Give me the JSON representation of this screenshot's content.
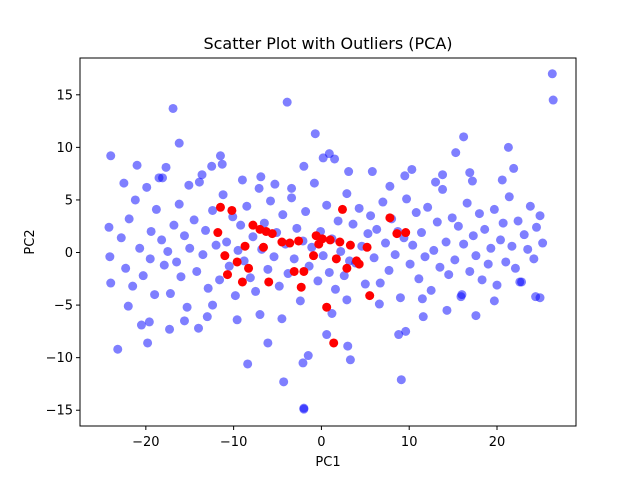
{
  "chart_data": {
    "type": "scatter",
    "title": "Scatter Plot with Outliers (PCA)",
    "xlabel": "PC1",
    "ylabel": "PC2",
    "xlim": [
      -27.5,
      29.0
    ],
    "ylim": [
      -16.5,
      18.5
    ],
    "xticks": [
      -20,
      -10,
      0,
      10,
      20
    ],
    "yticks": [
      -15,
      -10,
      -5,
      0,
      5,
      10,
      15
    ],
    "grid": false,
    "legend": "none",
    "series": [
      {
        "color": "#0000ff",
        "alpha": 0.5,
        "x": [
          -24.2,
          -24.1,
          -24.0,
          -22.8,
          -22.3,
          -21.9,
          -21.5,
          -21.2,
          -20.7,
          -20.3,
          -19.9,
          -19.5,
          -19.4,
          -19.0,
          -18.8,
          -18.2,
          -17.9,
          -17.5,
          -17.2,
          -16.8,
          -16.5,
          -16.2,
          -16.0,
          -15.6,
          -15.3,
          -15.0,
          -14.5,
          -14.2,
          -13.9,
          -13.5,
          -13.2,
          -12.9,
          -12.4,
          -12.0,
          -11.6,
          -11.2,
          -10.8,
          -10.5,
          -10.1,
          -9.8,
          -9.5,
          -9.2,
          -8.8,
          -8.5,
          -8.1,
          -7.8,
          -7.5,
          -7.1,
          -6.8,
          -6.5,
          -6.1,
          -5.8,
          -5.4,
          -5.1,
          -4.8,
          -4.4,
          -4.1,
          -3.8,
          -3.4,
          -3.1,
          -2.8,
          -2.4,
          -2.1,
          -1.8,
          -1.4,
          -1.1,
          -0.8,
          -0.4,
          -0.1,
          0.2,
          0.6,
          0.9,
          1.2,
          1.6,
          1.9,
          2.2,
          2.6,
          2.9,
          3.2,
          3.6,
          3.9,
          4.3,
          4.6,
          5.0,
          5.3,
          5.6,
          6.0,
          6.3,
          6.7,
          7.0,
          7.3,
          7.7,
          8.0,
          8.4,
          8.7,
          9.0,
          9.4,
          9.7,
          10.1,
          10.4,
          10.8,
          11.1,
          11.4,
          11.8,
          12.1,
          12.5,
          12.8,
          13.2,
          13.5,
          13.8,
          14.2,
          14.5,
          14.9,
          15.2,
          15.6,
          15.9,
          16.2,
          16.6,
          16.9,
          17.3,
          17.6,
          18.0,
          18.3,
          18.6,
          19.0,
          19.3,
          19.7,
          20.0,
          20.4,
          20.7,
          21.0,
          21.4,
          21.7,
          22.1,
          22.4,
          22.8,
          23.1,
          23.5,
          23.8,
          24.2,
          24.5,
          24.9,
          25.2,
          26.4,
          26.3,
          -16.9,
          -3.9,
          -0.7,
          0.9,
          21.3,
          -24.0,
          -12.5,
          -18.5,
          -16.2,
          -11.5,
          16.2,
          15.3,
          -2.0,
          9.1,
          -4.3,
          -2.0,
          0.6,
          8.8,
          -13.0,
          -19.8,
          -23.2,
          -20.5,
          -17.3,
          -14.0,
          -8.4,
          -6.1,
          -2.1,
          -1.5,
          3.0,
          3.3,
          9.6,
          11.6,
          14.3,
          17.6,
          22.6,
          24.9,
          -22.0,
          -19.6,
          -15.6,
          -12.4,
          -9.6,
          -7.0,
          -4.5,
          1.2,
          2.9,
          6.6,
          11.5,
          16.0,
          19.7,
          24.4,
          -21.0,
          -17.7,
          -13.6,
          -9.0,
          -5.3,
          -2.0,
          1.5,
          3.1,
          7.8,
          10.3,
          13.8,
          17.2,
          21.9,
          -22.5,
          -18.1,
          -15.1,
          -11.3,
          -6.9,
          -3.4,
          0.2,
          5.8,
          9.5,
          13.0,
          16.9,
          20.6
        ],
        "y": [
          2.4,
          -0.4,
          -2.9,
          1.4,
          -1.5,
          3.2,
          -3.2,
          5.0,
          0.4,
          -2.2,
          6.2,
          -0.6,
          2.0,
          -4.0,
          4.1,
          1.2,
          -1.2,
          0.1,
          -3.9,
          2.6,
          -0.9,
          4.6,
          -2.3,
          1.6,
          -5.2,
          0.4,
          3.1,
          -1.8,
          6.7,
          -0.2,
          2.1,
          -3.4,
          4.0,
          0.7,
          -2.6,
          5.5,
          1.0,
          -1.3,
          3.4,
          -4.1,
          0.2,
          2.6,
          -0.8,
          4.4,
          -2.4,
          1.5,
          -3.7,
          6.1,
          0.3,
          2.8,
          -1.6,
          4.9,
          -0.4,
          1.9,
          -3.2,
          3.6,
          0.8,
          -2.0,
          5.2,
          -0.6,
          2.3,
          -4.6,
          1.1,
          3.9,
          -1.3,
          0.5,
          6.6,
          -2.7,
          2.0,
          -0.3,
          4.5,
          -1.9,
          1.3,
          -3.5,
          3.0,
          0.1,
          -2.2,
          5.6,
          -0.8,
          2.7,
          -1.0,
          4.2,
          0.6,
          -3.0,
          1.8,
          3.5,
          -0.5,
          2.2,
          -2.9,
          4.8,
          0.9,
          -1.7,
          3.2,
          -0.2,
          2.0,
          -4.3,
          1.4,
          5.1,
          -1.1,
          0.7,
          3.8,
          -2.5,
          1.9,
          -0.4,
          4.3,
          -3.6,
          0.2,
          2.9,
          -1.4,
          6.0,
          1.0,
          -2.1,
          3.3,
          -0.7,
          2.5,
          -4.2,
          0.8,
          4.7,
          -1.8,
          1.6,
          -0.3,
          3.7,
          -2.6,
          2.2,
          -1.1,
          0.4,
          4.1,
          -3.1,
          1.2,
          2.8,
          -0.9,
          5.3,
          0.6,
          -1.5,
          3.0,
          -2.8,
          1.7,
          0.3,
          4.4,
          -0.6,
          2.4,
          3.5,
          0.9,
          14.5,
          17.0,
          13.7,
          14.3,
          11.3,
          9.4,
          10.0,
          9.2,
          8.2,
          7.1,
          10.4,
          9.2,
          11.0,
          9.5,
          -14.9,
          -12.1,
          -12.3,
          -14.8,
          -7.8,
          -7.8,
          -6.1,
          -8.6,
          -9.2,
          -6.9,
          -7.3,
          -7.2,
          -10.6,
          -8.6,
          -10.5,
          -9.8,
          -8.9,
          -10.2,
          -7.5,
          -6.1,
          -5.5,
          -6.0,
          -2.8,
          -4.3,
          -5.1,
          -6.6,
          -6.5,
          -5.0,
          -6.4,
          -5.9,
          -6.3,
          -5.8,
          -4.5,
          -4.9,
          -4.4,
          -4.0,
          -4.6,
          -4.2,
          8.3,
          8.1,
          7.4,
          6.9,
          6.5,
          8.2,
          8.9,
          7.7,
          6.3,
          7.9,
          7.4,
          6.8,
          8.0,
          6.6,
          7.1,
          6.4,
          8.4,
          7.2,
          6.1,
          9.0,
          7.7,
          7.3,
          6.7,
          7.6,
          6.9
        ]
      },
      {
        "color": "#ff0000",
        "alpha": 1.0,
        "x": [
          -11.8,
          -11.5,
          -11.0,
          -10.7,
          -10.2,
          -9.6,
          -9.0,
          -8.7,
          -8.3,
          -7.8,
          -7.0,
          -6.6,
          -6.3,
          -6.0,
          -5.6,
          -4.5,
          -3.6,
          -3.1,
          -2.6,
          -2.3,
          -2.0,
          -0.9,
          -0.6,
          -0.3,
          0.1,
          0.6,
          1.0,
          1.4,
          1.7,
          2.1,
          2.4,
          2.9,
          3.3,
          4.0,
          4.3,
          5.2,
          5.5,
          7.8,
          8.6,
          9.6
        ],
        "y": [
          1.9,
          4.3,
          -0.3,
          -2.1,
          4.0,
          -0.9,
          -2.8,
          0.6,
          -1.5,
          2.6,
          2.2,
          0.5,
          2.0,
          -2.8,
          1.8,
          1.0,
          0.9,
          -1.8,
          1.1,
          -3.3,
          -1.8,
          -0.3,
          1.6,
          0.8,
          1.3,
          -5.2,
          1.2,
          -8.6,
          -0.6,
          1.0,
          4.1,
          -1.5,
          0.7,
          -0.8,
          -1.1,
          0.5,
          -4.1,
          3.3,
          1.8,
          1.9
        ]
      }
    ]
  }
}
